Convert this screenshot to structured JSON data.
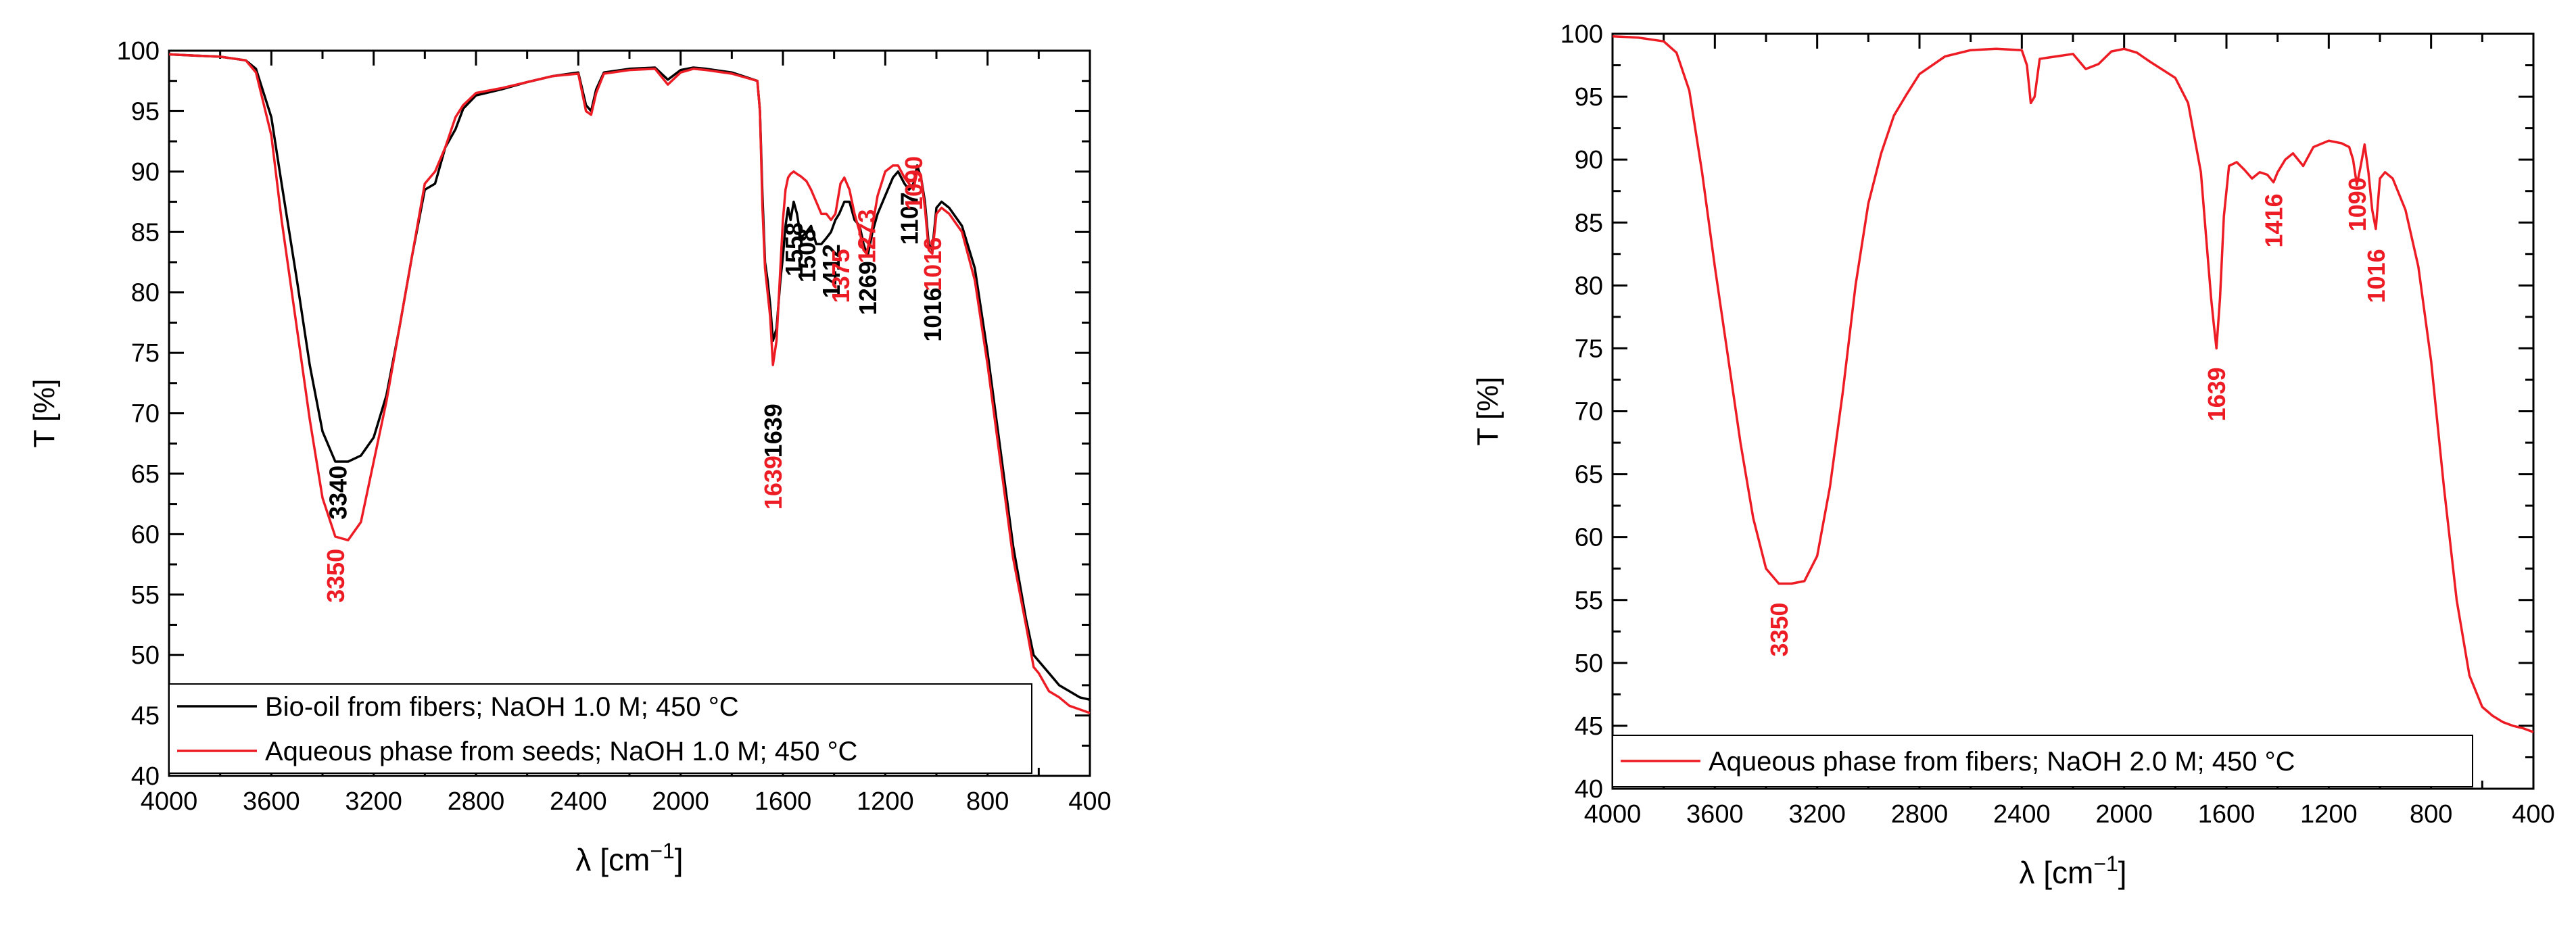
{
  "chart_data": [
    {
      "type": "line",
      "title": "",
      "xlabel": "λ [cm",
      "xlabel_sup": "−1",
      "xlabel_end": "]",
      "ylabel": "T [%]",
      "xlim": [
        4000,
        400
      ],
      "ylim": [
        40,
        100
      ],
      "xticks": [
        4000,
        3600,
        3200,
        2800,
        2400,
        2000,
        1600,
        1200,
        800,
        400
      ],
      "yticks": [
        40,
        45,
        50,
        55,
        60,
        65,
        70,
        75,
        80,
        85,
        90,
        95,
        100
      ],
      "xtick_labels": [
        "4000",
        "3600",
        "3200",
        "2800",
        "2400",
        "2000",
        "1600",
        "1200",
        "800",
        "400"
      ],
      "ytick_labels": [
        "40",
        "45",
        "50",
        "55",
        "60",
        "65",
        "70",
        "75",
        "80",
        "85",
        "90",
        "95",
        "100"
      ],
      "legend_position": "bottom-left",
      "series": [
        {
          "name": "Bio-oil from fibers; NaOH 1.0 M; 450 °C",
          "color": "#000000",
          "x": [
            4000,
            3900,
            3800,
            3700,
            3660,
            3600,
            3560,
            3500,
            3450,
            3400,
            3350,
            3300,
            3250,
            3200,
            3150,
            3100,
            3050,
            3000,
            2960,
            2920,
            2880,
            2850,
            2800,
            2700,
            2600,
            2500,
            2400,
            2370,
            2350,
            2330,
            2300,
            2200,
            2100,
            2050,
            2000,
            1950,
            1900,
            1800,
            1700,
            1690,
            1680,
            1670,
            1660,
            1650,
            1639,
            1625,
            1610,
            1600,
            1590,
            1580,
            1570,
            1558,
            1545,
            1530,
            1508,
            1490,
            1470,
            1450,
            1430,
            1412,
            1395,
            1380,
            1360,
            1340,
            1320,
            1300,
            1285,
            1269,
            1250,
            1230,
            1200,
            1170,
            1150,
            1125,
            1107,
            1090,
            1075,
            1060,
            1045,
            1030,
            1016,
            1000,
            980,
            950,
            900,
            850,
            800,
            750,
            700,
            650,
            620,
            600,
            560,
            520,
            480,
            440,
            400
          ],
          "y": [
            99.7,
            99.6,
            99.5,
            99.2,
            98.5,
            94.5,
            89,
            81,
            74,
            68.5,
            66,
            66,
            66.5,
            68,
            71.5,
            77,
            83,
            88.5,
            89,
            92,
            93.5,
            95.2,
            96.3,
            96.8,
            97.4,
            97.9,
            98.2,
            95.5,
            95,
            96.8,
            98.2,
            98.5,
            98.6,
            97.6,
            98.4,
            98.6,
            98.5,
            98.2,
            97.5,
            95,
            88,
            82.5,
            81,
            79,
            76,
            77,
            81,
            83,
            85.5,
            87,
            86,
            87.5,
            86.5,
            84.5,
            85,
            85.5,
            84,
            84,
            84.5,
            85,
            86,
            86.5,
            87.5,
            87.5,
            86,
            85.5,
            84,
            83,
            85,
            86.5,
            88,
            89.5,
            90,
            89,
            88.5,
            89,
            90.5,
            89.5,
            87.5,
            84,
            83.5,
            87,
            87.5,
            87,
            85.5,
            82,
            75,
            67,
            59,
            53,
            50,
            49.5,
            48.5,
            47.5,
            47,
            46.5,
            46.3
          ]
        },
        {
          "name": "Aqueous phase from seeds; NaOH 1.0 M; 450 °C",
          "color": "#ed1c24",
          "x": [
            4000,
            3900,
            3800,
            3700,
            3660,
            3600,
            3560,
            3500,
            3450,
            3400,
            3350,
            3300,
            3250,
            3200,
            3150,
            3100,
            3050,
            3000,
            2960,
            2920,
            2880,
            2850,
            2800,
            2700,
            2600,
            2500,
            2400,
            2370,
            2350,
            2330,
            2300,
            2200,
            2100,
            2050,
            2000,
            1950,
            1900,
            1800,
            1700,
            1690,
            1680,
            1670,
            1660,
            1650,
            1639,
            1625,
            1610,
            1600,
            1590,
            1580,
            1570,
            1558,
            1545,
            1530,
            1508,
            1490,
            1470,
            1450,
            1430,
            1412,
            1395,
            1375,
            1360,
            1340,
            1320,
            1300,
            1285,
            1273,
            1250,
            1230,
            1200,
            1170,
            1150,
            1125,
            1107,
            1090,
            1075,
            1060,
            1045,
            1030,
            1016,
            1000,
            980,
            950,
            900,
            850,
            800,
            750,
            700,
            650,
            620,
            600,
            560,
            520,
            480,
            440,
            400
          ],
          "y": [
            99.7,
            99.6,
            99.5,
            99.2,
            98.2,
            93,
            86,
            77,
            69.5,
            63,
            59.8,
            59.5,
            61,
            66,
            71,
            77,
            83,
            89,
            90,
            92,
            94.5,
            95.5,
            96.5,
            96.9,
            97.4,
            97.9,
            98.1,
            95,
            94.7,
            96.5,
            98.1,
            98.4,
            98.5,
            97.2,
            98.2,
            98.5,
            98.4,
            98.1,
            97.5,
            95,
            87,
            82,
            80,
            78,
            74,
            76,
            82,
            86,
            88.5,
            89.5,
            89.8,
            90,
            89.8,
            89.6,
            89.2,
            88.5,
            87.5,
            86.5,
            86.5,
            86,
            86.5,
            89,
            89.5,
            88.5,
            86.5,
            85,
            83.5,
            83.2,
            85.5,
            88,
            90,
            90.5,
            90.5,
            89.5,
            89,
            88.5,
            90,
            89.5,
            87,
            83.5,
            83.2,
            86.5,
            87,
            86.5,
            85,
            81,
            74,
            66,
            58,
            52.5,
            49,
            48.5,
            47,
            46.5,
            45.8,
            45.5,
            45.2
          ]
        }
      ],
      "annotations": [
        {
          "text": "3340",
          "x": 3340,
          "color": "#000000"
        },
        {
          "text": "3350",
          "x": 3350,
          "color": "#ed1c24"
        },
        {
          "text": "1639",
          "x": 1639,
          "color": "#000000"
        },
        {
          "text": "1639",
          "x": 1639,
          "color": "#ed1c24"
        },
        {
          "text": "1558",
          "x": 1558,
          "color": "#000000"
        },
        {
          "text": "1508",
          "x": 1508,
          "color": "#000000"
        },
        {
          "text": "1412",
          "x": 1412,
          "color": "#000000"
        },
        {
          "text": "1375",
          "x": 1375,
          "color": "#ed1c24"
        },
        {
          "text": "1269",
          "x": 1269,
          "color": "#000000"
        },
        {
          "text": "1273",
          "x": 1273,
          "color": "#ed1c24"
        },
        {
          "text": "1107",
          "x": 1107,
          "color": "#000000"
        },
        {
          "text": "1090",
          "x": 1090,
          "color": "#ed1c24"
        },
        {
          "text": "1016",
          "x": 1016,
          "color": "#000000"
        },
        {
          "text": "1016",
          "x": 1016,
          "color": "#ed1c24"
        }
      ]
    },
    {
      "type": "line",
      "title": "",
      "xlabel": "λ [cm",
      "xlabel_sup": "−1",
      "xlabel_end": "]",
      "ylabel": "T [%]",
      "xlim": [
        4000,
        400
      ],
      "ylim": [
        40,
        100
      ],
      "xticks": [
        4000,
        3600,
        3200,
        2800,
        2400,
        2000,
        1600,
        1200,
        800,
        400
      ],
      "yticks": [
        40,
        45,
        50,
        55,
        60,
        65,
        70,
        75,
        80,
        85,
        90,
        95,
        100
      ],
      "xtick_labels": [
        "4000",
        "3600",
        "3200",
        "2800",
        "2400",
        "2000",
        "1600",
        "1200",
        "800",
        "400"
      ],
      "ytick_labels": [
        "40",
        "45",
        "50",
        "55",
        "60",
        "65",
        "70",
        "75",
        "80",
        "85",
        "90",
        "95",
        "100"
      ],
      "legend_position": "bottom-left",
      "series": [
        {
          "name": "Aqueous phase from fibers; NaOH 2.0 M; 450 °C",
          "color": "#ed1c24",
          "x": [
            4000,
            3900,
            3800,
            3750,
            3700,
            3650,
            3600,
            3550,
            3500,
            3450,
            3400,
            3350,
            3300,
            3250,
            3200,
            3150,
            3100,
            3050,
            3000,
            2950,
            2900,
            2850,
            2800,
            2700,
            2600,
            2500,
            2400,
            2380,
            2365,
            2350,
            2330,
            2300,
            2200,
            2150,
            2100,
            2050,
            2000,
            1950,
            1900,
            1800,
            1750,
            1700,
            1680,
            1660,
            1650,
            1639,
            1625,
            1610,
            1590,
            1560,
            1530,
            1500,
            1470,
            1440,
            1416,
            1400,
            1370,
            1340,
            1300,
            1260,
            1200,
            1150,
            1120,
            1105,
            1090,
            1075,
            1060,
            1045,
            1030,
            1016,
            1000,
            980,
            950,
            900,
            850,
            800,
            750,
            700,
            650,
            600,
            560,
            520,
            480,
            440,
            400
          ],
          "y": [
            99.8,
            99.7,
            99.4,
            98.5,
            95.5,
            89,
            81.5,
            74.5,
            67.5,
            61.5,
            57.5,
            56.3,
            56.3,
            56.5,
            58.5,
            64,
            71.5,
            80,
            86.5,
            90.5,
            93.5,
            95.2,
            96.8,
            98.2,
            98.7,
            98.8,
            98.7,
            97.5,
            94.5,
            95,
            98,
            98.1,
            98.4,
            97.2,
            97.6,
            98.6,
            98.8,
            98.5,
            97.8,
            96.5,
            94.5,
            89,
            84,
            79,
            77,
            75,
            79,
            85.5,
            89.5,
            89.8,
            89.2,
            88.5,
            89,
            88.8,
            88.2,
            89,
            90,
            90.5,
            89.5,
            91,
            91.5,
            91.3,
            91,
            90,
            88,
            89.5,
            91.2,
            89,
            86,
            84.5,
            88.5,
            89,
            88.5,
            86,
            81.5,
            74,
            64,
            55,
            49,
            46.5,
            45.8,
            45.3,
            45,
            44.8,
            44.5
          ]
        }
      ],
      "annotations": [
        {
          "text": "3350",
          "x": 3350,
          "color": "#ed1c24"
        },
        {
          "text": "1639",
          "x": 1639,
          "color": "#ed1c24"
        },
        {
          "text": "1416",
          "x": 1416,
          "color": "#ed1c24"
        },
        {
          "text": "1090",
          "x": 1090,
          "color": "#ed1c24"
        },
        {
          "text": "1016",
          "x": 1016,
          "color": "#ed1c24"
        }
      ]
    }
  ]
}
